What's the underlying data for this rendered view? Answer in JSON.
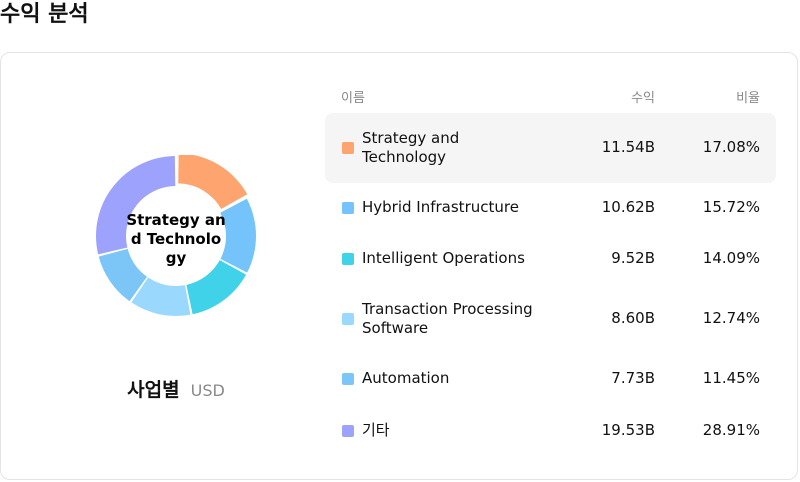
{
  "page": {
    "title": "수익 분석"
  },
  "donut": {
    "center_label": "Strategy and Technology"
  },
  "caption": {
    "main": "사업별",
    "currency": "USD"
  },
  "table": {
    "headers": {
      "name": "이름",
      "revenue": "수익",
      "share": "비율"
    },
    "rows": [
      {
        "name": "Strategy and Technology",
        "revenue": "11.54B",
        "share": "17.08%",
        "percent": 17.08,
        "color": "#fda46f",
        "active": true
      },
      {
        "name": "Hybrid Infrastructure",
        "revenue": "10.62B",
        "share": "15.72%",
        "percent": 15.72,
        "color": "#74c3fa"
      },
      {
        "name": "Intelligent Operations",
        "revenue": "9.52B",
        "share": "14.09%",
        "percent": 14.09,
        "color": "#3fd2e8"
      },
      {
        "name": "Transaction Processing Software",
        "revenue": "8.60B",
        "share": "12.74%",
        "percent": 12.74,
        "color": "#9ad9fd"
      },
      {
        "name": "Automation",
        "revenue": "7.73B",
        "share": "11.45%",
        "percent": 11.45,
        "color": "#7cc6f7"
      },
      {
        "name": "기타",
        "revenue": "19.53B",
        "share": "28.91%",
        "percent": 28.91,
        "color": "#9da3fd"
      }
    ]
  }
}
